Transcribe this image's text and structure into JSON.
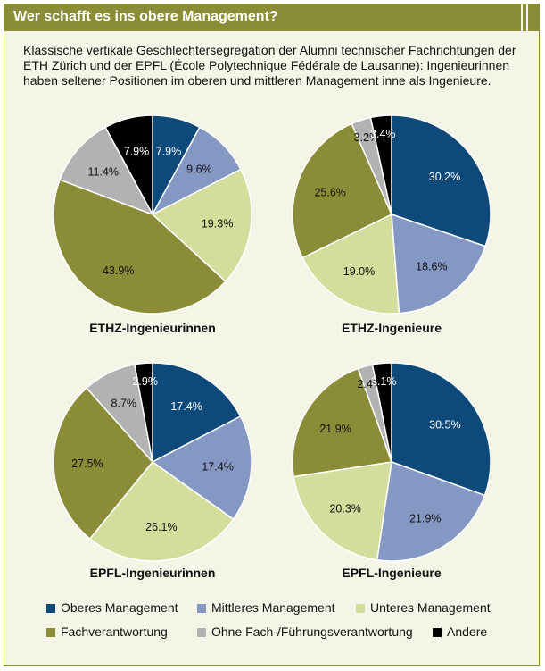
{
  "header": {
    "title": "Wer schafft es ins obere Management?"
  },
  "subtitle": "Klassische vertikale Geschlechtersegregation der Alumni technischer Fachrichtungen der ETH Zürich und der EPFL (École Polytechnique Fédérale de Lausanne): Ingenieurinnen haben seltener Positionen im oberen und mittleren Management inne als Ingenieure.",
  "colors": {
    "oberes": "#0d4a7a",
    "mittleres": "#8598c3",
    "unteres": "#d3de9c",
    "fach": "#8a8c38",
    "ohne": "#b2b2b2",
    "andere": "#000000"
  },
  "chart_data": [
    {
      "type": "pie",
      "title": "ETHZ-Ingenieurinnen",
      "labels": [
        "Oberes Management",
        "Mittleres Management",
        "Unteres Management",
        "Fachverantwortung",
        "Ohne Fach-/Führungsverantwortung",
        "Andere"
      ],
      "values": [
        7.9,
        9.6,
        19.3,
        43.9,
        11.4,
        7.9
      ],
      "value_labels": [
        "7.9%",
        "9.6%",
        "19.3%",
        "43.9%",
        "11.4%",
        "7.9%"
      ]
    },
    {
      "type": "pie",
      "title": "ETHZ-Ingenieure",
      "labels": [
        "Oberes Management",
        "Mittleres Management",
        "Unteres Management",
        "Fachverantwortung",
        "Ohne Fach-/Führungsverantwortung",
        "Andere"
      ],
      "values": [
        30.2,
        18.6,
        19.0,
        25.6,
        3.2,
        3.4
      ],
      "value_labels": [
        "30.2%",
        "18.6%",
        "19.0%",
        "25.6%",
        "3.2%",
        "3.4%"
      ]
    },
    {
      "type": "pie",
      "title": "EPFL-Ingenieurinnen",
      "labels": [
        "Oberes Management",
        "Mittleres Management",
        "Unteres Management",
        "Fachverantwortung",
        "Ohne Fach-/Führungsverantwortung",
        "Andere"
      ],
      "values": [
        17.4,
        17.4,
        26.1,
        27.5,
        8.7,
        2.9
      ],
      "value_labels": [
        "17.4%",
        "17.4%",
        "26.1%",
        "27.5%",
        "8.7%",
        "2.9%"
      ]
    },
    {
      "type": "pie",
      "title": "EPFL-Ingenieure",
      "labels": [
        "Oberes Management",
        "Mittleres Management",
        "Unteres Management",
        "Fachverantwortung",
        "Ohne Fach-/Führungsverantwortung",
        "Andere"
      ],
      "values": [
        30.5,
        21.9,
        20.3,
        21.9,
        2.4,
        3.1
      ],
      "value_labels": [
        "30.5%",
        "21.9%",
        "20.3%",
        "21.9%",
        "2.4%",
        "3.1%"
      ]
    }
  ],
  "legend": [
    {
      "label": "Oberes Management",
      "color_key": "oberes"
    },
    {
      "label": "Mittleres Management",
      "color_key": "mittleres"
    },
    {
      "label": "Unteres Management",
      "color_key": "unteres"
    },
    {
      "label": "Fachverantwortung",
      "color_key": "fach"
    },
    {
      "label": "Ohne Fach-/Führungsverantwortung",
      "color_key": "ohne"
    },
    {
      "label": "Andere",
      "color_key": "andere"
    }
  ]
}
